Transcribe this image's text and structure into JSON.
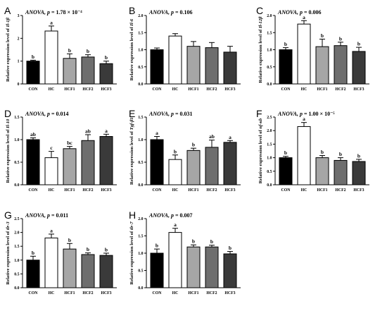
{
  "figure": {
    "colors": {
      "CON": "#000000",
      "HC": "#ffffff",
      "HCF1": "#a6a6a6",
      "HCF2": "#6e6e6e",
      "HCF3": "#3a3a3a"
    }
  },
  "chart_data": [
    {
      "panel": "A",
      "type": "bar",
      "title_prefix": "ANOVA, ",
      "title_p": "p",
      "title_value": " = 1.78 × 10⁻⁴",
      "ylabel_prefix": "Relative expression level of ",
      "ylabel_gene": "Il-1β",
      "categories": [
        "CON",
        "HC",
        "HCF1",
        "HCF2",
        "HCF3"
      ],
      "values": [
        1.0,
        2.32,
        1.12,
        1.18,
        0.89
      ],
      "errors": [
        0.04,
        0.22,
        0.2,
        0.1,
        0.11
      ],
      "letters": [
        "b",
        "a",
        "b",
        "b",
        "b"
      ],
      "ylim": [
        0,
        3
      ],
      "ticks": [
        "0",
        "1",
        "2",
        "3"
      ],
      "tick_values": [
        0,
        1,
        2,
        3
      ]
    },
    {
      "panel": "B",
      "type": "bar",
      "title_prefix": "ANOVA, ",
      "title_p": "p",
      "title_value": " = 0.106",
      "ylabel_prefix": "Relative expression level of ",
      "ylabel_gene": "Il-6",
      "categories": [
        "CON",
        "HC",
        "HCF1",
        "HCF2",
        "HCF3"
      ],
      "values": [
        1.0,
        1.4,
        1.1,
        1.06,
        0.93
      ],
      "errors": [
        0.05,
        0.07,
        0.14,
        0.15,
        0.17
      ],
      "letters": [
        "",
        "",
        "",
        "",
        ""
      ],
      "ylim": [
        0,
        2
      ],
      "ticks": [
        "0.0",
        "0.5",
        "1.0",
        "1.5",
        "2.0"
      ],
      "tick_values": [
        0,
        0.5,
        1,
        1.5,
        2
      ]
    },
    {
      "panel": "C",
      "type": "bar",
      "title_prefix": "ANOVA, ",
      "title_p": "p",
      "title_value": " = 0.006",
      "ylabel_prefix": "Relative expression level of ",
      "ylabel_gene": "Il-12β",
      "categories": [
        "CON",
        "HC",
        "HCF1",
        "HCF2",
        "HCF3"
      ],
      "values": [
        1.0,
        1.75,
        1.09,
        1.12,
        0.95
      ],
      "errors": [
        0.06,
        0.1,
        0.22,
        0.1,
        0.12
      ],
      "letters": [
        "b",
        "a",
        "b",
        "b",
        "b"
      ],
      "ylim": [
        0,
        2
      ],
      "ticks": [
        "0.0",
        "0.5",
        "1.0",
        "1.5",
        "2.0"
      ],
      "tick_values": [
        0,
        0.5,
        1,
        1.5,
        2
      ]
    },
    {
      "panel": "D",
      "type": "bar",
      "title_prefix": "ANOVA, ",
      "title_p": "p",
      "title_value": " = 0.014",
      "ylabel_prefix": "Relative expression level of ",
      "ylabel_gene": "Il-10",
      "categories": [
        "CON",
        "HC",
        "HCF1",
        "HCF2",
        "HCF3"
      ],
      "values": [
        1.0,
        0.6,
        0.8,
        0.98,
        1.07
      ],
      "errors": [
        0.04,
        0.14,
        0.05,
        0.13,
        0.05
      ],
      "letters": [
        "ab",
        "c",
        "bc",
        "ab",
        "a"
      ],
      "ylim": [
        0,
        1.5
      ],
      "ticks": [
        "0.0",
        "0.5",
        "1.0",
        "1.5"
      ],
      "tick_values": [
        0,
        0.5,
        1,
        1.5
      ]
    },
    {
      "panel": "E",
      "type": "bar",
      "title_prefix": "ANOVA, ",
      "title_p": "p",
      "title_value": " = 0.031",
      "ylabel_prefix": "Relative expression level of ",
      "ylabel_gene": "Tgf-β1",
      "categories": [
        "CON",
        "HC",
        "HCF1",
        "HCF2",
        "HCF3"
      ],
      "values": [
        1.0,
        0.56,
        0.76,
        0.83,
        0.94
      ],
      "errors": [
        0.07,
        0.1,
        0.05,
        0.16,
        0.04
      ],
      "letters": [
        "a",
        "b",
        "b",
        "ab",
        "a"
      ],
      "ylim": [
        0,
        1.5
      ],
      "ticks": [
        "0.0",
        "0.5",
        "1.0",
        "1.5"
      ],
      "tick_values": [
        0,
        0.5,
        1,
        1.5
      ]
    },
    {
      "panel": "F",
      "type": "bar",
      "title_prefix": "ANOVA, ",
      "title_p": "p",
      "title_value": " = 1.00 × 10⁻⁵",
      "ylabel_prefix": "Relative expression level of ",
      "ylabel_gene": "nf-κb",
      "categories": [
        "CON",
        "HC",
        "HCF1",
        "HCF2",
        "HCF3"
      ],
      "values": [
        1.0,
        2.15,
        1.0,
        0.9,
        0.86
      ],
      "errors": [
        0.05,
        0.15,
        0.08,
        0.1,
        0.08
      ],
      "letters": [
        "b",
        "a",
        "b",
        "b",
        "b"
      ],
      "ylim": [
        0,
        2.5
      ],
      "ticks": [
        "0.0",
        "0.5",
        "1.0",
        "1.5",
        "2.0",
        "2.5"
      ],
      "tick_values": [
        0,
        0.5,
        1,
        1.5,
        2,
        2.5
      ]
    },
    {
      "panel": "G",
      "type": "bar",
      "title_prefix": "ANOVA, ",
      "title_p": "p",
      "title_value": " = 0.011",
      "ylabel_prefix": "Relative expression level of ",
      "ylabel_gene": "tlr-3",
      "categories": [
        "CON",
        "HC",
        "HCF1",
        "HCF2",
        "HCF3"
      ],
      "values": [
        1.0,
        1.8,
        1.4,
        1.2,
        1.17
      ],
      "errors": [
        0.14,
        0.14,
        0.2,
        0.06,
        0.08
      ],
      "letters": [
        "b",
        "a",
        "b",
        "b",
        "b"
      ],
      "ylim": [
        0,
        2.5
      ],
      "ticks": [
        "0.0",
        "0.5",
        "1.0",
        "1.5",
        "2.0",
        "2.5"
      ],
      "tick_values": [
        0,
        0.5,
        1,
        1.5,
        2,
        2.5
      ]
    },
    {
      "panel": "H",
      "type": "bar",
      "title_prefix": "ANOVA, ",
      "title_p": "p",
      "title_value": " = 0.007",
      "ylabel_prefix": "Relative expression level of ",
      "ylabel_gene": "tlr-7",
      "categories": [
        "CON",
        "HC",
        "HCF1",
        "HCF2",
        "HCF3"
      ],
      "values": [
        1.0,
        1.6,
        1.18,
        1.18,
        0.98
      ],
      "errors": [
        0.12,
        0.12,
        0.06,
        0.05,
        0.07
      ],
      "letters": [
        "b",
        "a",
        "b",
        "b",
        "b"
      ],
      "ylim": [
        0,
        2
      ],
      "ticks": [
        "0.0",
        "0.5",
        "1.0",
        "1.5",
        "2.0"
      ],
      "tick_values": [
        0,
        0.5,
        1,
        1.5,
        2
      ]
    }
  ]
}
